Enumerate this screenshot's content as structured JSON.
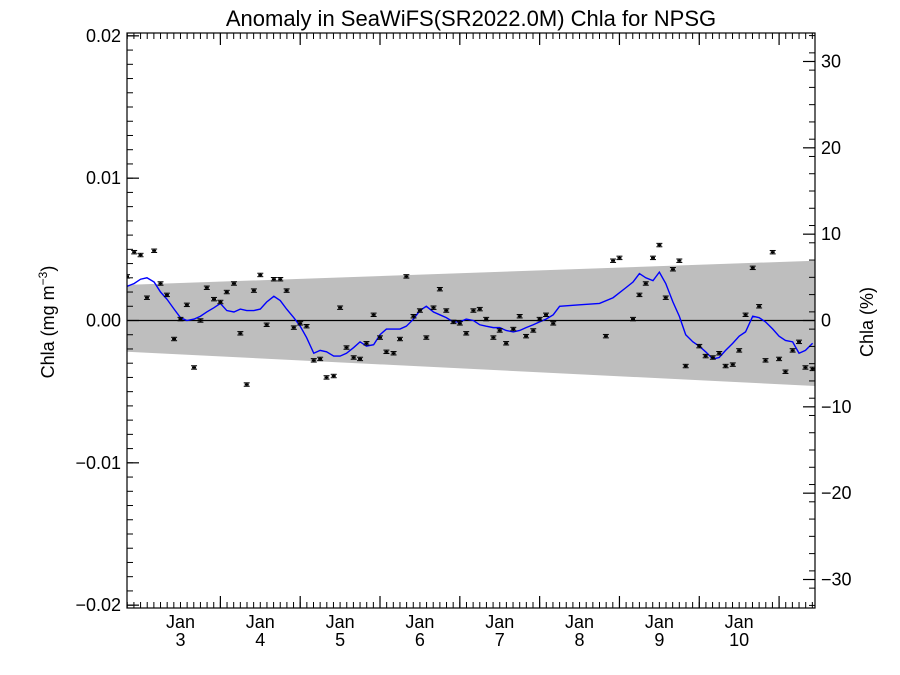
{
  "chart_data": {
    "type": "scatter",
    "title": "Anomaly in SeaWiFS(SR2022.0M) Chla for NPSG",
    "ylabel": "Chla (mg m",
    "ylabel_exponent": "−3",
    "ylabel_close": ")",
    "ylabel_right": "Chla (%)",
    "x_range": [
      2.33,
      10.95
    ],
    "ylim": [
      -0.0202,
      0.0202
    ],
    "ylim_right": [
      -33.3,
      33.3
    ],
    "y_ticks": [
      {
        "value": 0.02,
        "label": "0.02"
      },
      {
        "value": 0.01,
        "label": "0.01"
      },
      {
        "value": 0.0,
        "label": "0.00"
      },
      {
        "value": -0.01,
        "label": "−0.01"
      },
      {
        "value": -0.02,
        "label": "−0.02"
      }
    ],
    "y_ticks_right": [
      {
        "value": 30,
        "label": "30"
      },
      {
        "value": 20,
        "label": "20"
      },
      {
        "value": 10,
        "label": "10"
      },
      {
        "value": 0,
        "label": "0"
      },
      {
        "value": -10,
        "label": "−10"
      },
      {
        "value": -20,
        "label": "−20"
      },
      {
        "value": -30,
        "label": "−30"
      }
    ],
    "x_ticks": [
      {
        "value": 3,
        "month": "Jan",
        "year": "3"
      },
      {
        "value": 4,
        "month": "Jan",
        "year": "4"
      },
      {
        "value": 5,
        "month": "Jan",
        "year": "5"
      },
      {
        "value": 6,
        "month": "Jan",
        "year": "6"
      },
      {
        "value": 7,
        "month": "Jan",
        "year": "7"
      },
      {
        "value": 8,
        "month": "Jan",
        "year": "8"
      },
      {
        "value": 9,
        "month": "Jan",
        "year": "9"
      },
      {
        "value": 10,
        "month": "Jan",
        "year": "10"
      }
    ],
    "uncertainty_band": {
      "x": [
        2.33,
        10.95
      ],
      "upper": [
        0.0025,
        0.0042
      ],
      "lower": [
        -0.0022,
        -0.0046
      ],
      "color": "#bebebe"
    },
    "zero_line": 0.0,
    "series": [
      {
        "kind": "monthly_points",
        "color": "#000000",
        "error_bar": 0.00012,
        "points": [
          [
            2.33,
            0.0031
          ],
          [
            2.42,
            0.0048
          ],
          [
            2.5,
            0.0046
          ],
          [
            2.58,
            0.0016
          ],
          [
            2.67,
            0.0049
          ],
          [
            2.75,
            0.0026
          ],
          [
            2.83,
            0.0018
          ],
          [
            2.92,
            -0.0013
          ],
          [
            3.0,
            0.0001
          ],
          [
            3.08,
            0.0011
          ],
          [
            3.17,
            -0.0033
          ],
          [
            3.25,
            0.0
          ],
          [
            3.33,
            0.0023
          ],
          [
            3.42,
            0.0015
          ],
          [
            3.5,
            0.0013
          ],
          [
            3.58,
            0.002
          ],
          [
            3.67,
            0.0026
          ],
          [
            3.75,
            -0.0009
          ],
          [
            3.83,
            -0.0045
          ],
          [
            3.92,
            0.0021
          ],
          [
            4.0,
            0.0032
          ],
          [
            4.08,
            -0.0003
          ],
          [
            4.17,
            0.0029
          ],
          [
            4.25,
            0.0029
          ],
          [
            4.33,
            0.0021
          ],
          [
            4.42,
            -0.0005
          ],
          [
            4.5,
            -0.0002
          ],
          [
            4.58,
            -0.0004
          ],
          [
            4.67,
            -0.0028
          ],
          [
            4.75,
            -0.0027
          ],
          [
            4.83,
            -0.004
          ],
          [
            4.92,
            -0.0039
          ],
          [
            5.0,
            0.0009
          ],
          [
            5.08,
            -0.0019
          ],
          [
            5.17,
            -0.0026
          ],
          [
            5.25,
            -0.0027
          ],
          [
            5.33,
            -0.0016
          ],
          [
            5.42,
            0.0004
          ],
          [
            5.5,
            -0.0012
          ],
          [
            5.58,
            -0.0022
          ],
          [
            5.67,
            -0.0023
          ],
          [
            5.75,
            -0.0013
          ],
          [
            5.83,
            0.0031
          ],
          [
            5.92,
            0.0003
          ],
          [
            6.0,
            0.0007
          ],
          [
            6.08,
            -0.0012
          ],
          [
            6.17,
            0.0009
          ],
          [
            6.25,
            0.0022
          ],
          [
            6.33,
            0.0007
          ],
          [
            6.42,
            -0.0001
          ],
          [
            6.5,
            -0.0002
          ],
          [
            6.58,
            -0.0009
          ],
          [
            6.67,
            0.0007
          ],
          [
            6.75,
            0.0008
          ],
          [
            6.83,
            0.0001
          ],
          [
            6.92,
            -0.0012
          ],
          [
            7.0,
            -0.0007
          ],
          [
            7.08,
            -0.0016
          ],
          [
            7.17,
            -0.0006
          ],
          [
            7.25,
            0.0003
          ],
          [
            7.33,
            -0.0011
          ],
          [
            7.42,
            -0.0007
          ],
          [
            7.5,
            0.0001
          ],
          [
            7.58,
            0.0004
          ],
          [
            7.67,
            -0.0002
          ],
          [
            8.33,
            -0.0011
          ],
          [
            8.42,
            0.0042
          ],
          [
            8.5,
            0.0044
          ],
          [
            8.67,
            0.0001
          ],
          [
            8.75,
            0.0018
          ],
          [
            8.83,
            0.0026
          ],
          [
            8.92,
            0.0044
          ],
          [
            9.0,
            0.0053
          ],
          [
            9.08,
            0.0016
          ],
          [
            9.17,
            0.0036
          ],
          [
            9.25,
            0.0042
          ],
          [
            9.33,
            -0.0032
          ],
          [
            9.5,
            -0.0018
          ],
          [
            9.58,
            -0.0025
          ],
          [
            9.67,
            -0.0026
          ],
          [
            9.75,
            -0.0023
          ],
          [
            9.83,
            -0.0032
          ],
          [
            9.92,
            -0.0031
          ],
          [
            10.0,
            -0.0021
          ],
          [
            10.08,
            0.0004
          ],
          [
            10.17,
            0.0037
          ],
          [
            10.25,
            0.001
          ],
          [
            10.33,
            -0.0028
          ],
          [
            10.42,
            0.0048
          ],
          [
            10.5,
            -0.0027
          ],
          [
            10.58,
            -0.0036
          ],
          [
            10.67,
            -0.0021
          ],
          [
            10.75,
            -0.0015
          ],
          [
            10.83,
            -0.0033
          ],
          [
            10.92,
            -0.0034
          ]
        ]
      },
      {
        "kind": "running_mean",
        "color": "#0000ff",
        "points": [
          [
            2.33,
            0.0024
          ],
          [
            2.42,
            0.0026
          ],
          [
            2.5,
            0.0029
          ],
          [
            2.58,
            0.003
          ],
          [
            2.67,
            0.0027
          ],
          [
            2.75,
            0.002
          ],
          [
            2.83,
            0.0015
          ],
          [
            2.92,
            0.0008
          ],
          [
            3.0,
            0.0002
          ],
          [
            3.08,
            0.0
          ],
          [
            3.17,
            0.0001
          ],
          [
            3.25,
            0.0003
          ],
          [
            3.33,
            0.0006
          ],
          [
            3.42,
            0.0009
          ],
          [
            3.5,
            0.0012
          ],
          [
            3.58,
            0.0007
          ],
          [
            3.67,
            0.0006
          ],
          [
            3.75,
            0.0008
          ],
          [
            3.83,
            0.0007
          ],
          [
            3.92,
            0.0007
          ],
          [
            4.0,
            0.0008
          ],
          [
            4.08,
            0.0013
          ],
          [
            4.17,
            0.0017
          ],
          [
            4.25,
            0.0014
          ],
          [
            4.33,
            0.0008
          ],
          [
            4.42,
            0.0002
          ],
          [
            4.5,
            -0.0004
          ],
          [
            4.58,
            -0.0012
          ],
          [
            4.67,
            -0.0023
          ],
          [
            4.75,
            -0.0021
          ],
          [
            4.83,
            -0.0022
          ],
          [
            4.92,
            -0.0025
          ],
          [
            5.0,
            -0.0025
          ],
          [
            5.08,
            -0.0023
          ],
          [
            5.17,
            -0.0019
          ],
          [
            5.25,
            -0.0015
          ],
          [
            5.33,
            -0.0018
          ],
          [
            5.42,
            -0.0017
          ],
          [
            5.5,
            -0.001
          ],
          [
            5.58,
            -0.0006
          ],
          [
            5.67,
            -0.0006
          ],
          [
            5.75,
            -0.0006
          ],
          [
            5.83,
            -0.0004
          ],
          [
            5.92,
            0.0001
          ],
          [
            6.0,
            0.0007
          ],
          [
            6.08,
            0.001
          ],
          [
            6.17,
            0.0006
          ],
          [
            6.25,
            0.0004
          ],
          [
            6.33,
            0.0002
          ],
          [
            6.42,
            -0.0001
          ],
          [
            6.5,
            -0.0001
          ],
          [
            6.58,
            0.0001
          ],
          [
            6.67,
            0.0
          ],
          [
            6.75,
            -0.0003
          ],
          [
            6.83,
            -0.0004
          ],
          [
            6.92,
            -0.0005
          ],
          [
            7.0,
            -0.0005
          ],
          [
            7.08,
            -0.0007
          ],
          [
            7.17,
            -0.0008
          ],
          [
            7.25,
            -0.0007
          ],
          [
            7.33,
            -0.0005
          ],
          [
            7.42,
            -0.0003
          ],
          [
            7.5,
            -0.0001
          ],
          [
            7.58,
            0.0001
          ],
          [
            7.67,
            0.0004
          ],
          [
            7.75,
            0.001
          ],
          [
            8.0,
            0.0011
          ],
          [
            8.25,
            0.0012
          ],
          [
            8.42,
            0.0016
          ],
          [
            8.58,
            0.0023
          ],
          [
            8.67,
            0.0027
          ],
          [
            8.75,
            0.0033
          ],
          [
            8.83,
            0.003
          ],
          [
            8.92,
            0.0028
          ],
          [
            9.0,
            0.0034
          ],
          [
            9.08,
            0.0026
          ],
          [
            9.17,
            0.0013
          ],
          [
            9.25,
            0.0003
          ],
          [
            9.33,
            -0.001
          ],
          [
            9.42,
            -0.0015
          ],
          [
            9.5,
            -0.0018
          ],
          [
            9.58,
            -0.0022
          ],
          [
            9.67,
            -0.0027
          ],
          [
            9.75,
            -0.0026
          ],
          [
            9.83,
            -0.0021
          ],
          [
            9.92,
            -0.0016
          ],
          [
            10.0,
            -0.0011
          ],
          [
            10.08,
            -0.0008
          ],
          [
            10.17,
            0.0003
          ],
          [
            10.25,
            0.0002
          ],
          [
            10.33,
            -0.0001
          ],
          [
            10.42,
            -0.0006
          ],
          [
            10.5,
            -0.0011
          ],
          [
            10.58,
            -0.0014
          ],
          [
            10.67,
            -0.0015
          ],
          [
            10.75,
            -0.0023
          ],
          [
            10.83,
            -0.0021
          ],
          [
            10.92,
            -0.0016
          ]
        ]
      }
    ]
  }
}
